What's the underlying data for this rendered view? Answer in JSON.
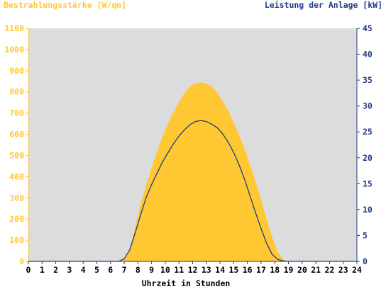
{
  "chart_data": {
    "type": "area",
    "left_axis_label": "Bestrahlungsstärke [W/qm]",
    "right_axis_label": "Leistung der Anlage [kW]",
    "xlabel": "Uhrzeit in Stunden",
    "xlim": [
      0,
      24
    ],
    "x_ticks": [
      "0",
      "1",
      "2",
      "3",
      "4",
      "5",
      "6",
      "7",
      "8",
      "9",
      "10",
      "11",
      "12",
      "13",
      "14",
      "15",
      "16",
      "17",
      "18",
      "19",
      "20",
      "21",
      "22",
      "23",
      "24"
    ],
    "y_left_lim": [
      0,
      1100
    ],
    "y_left_ticks": [
      "0",
      "100",
      "200",
      "300",
      "400",
      "500",
      "600",
      "700",
      "800",
      "900",
      "1000",
      "1100"
    ],
    "y_right_lim": [
      0,
      45
    ],
    "y_right_ticks": [
      "0",
      "5",
      "10",
      "15",
      "20",
      "25",
      "30",
      "35",
      "40",
      "45"
    ],
    "grid": false,
    "series": [
      {
        "name": "Bestrahlungsstärke [W/qm]",
        "axis": "left",
        "style": "area",
        "color": "#ffc732",
        "x": [
          0,
          6.6,
          7.0,
          7.4,
          7.8,
          8.2,
          8.6,
          9.0,
          9.4,
          9.8,
          10.2,
          10.6,
          11.0,
          11.4,
          11.8,
          12.2,
          12.6,
          13.0,
          13.4,
          13.8,
          14.2,
          14.6,
          15.0,
          15.4,
          15.8,
          16.2,
          16.6,
          17.0,
          17.4,
          17.8,
          18.2,
          18.6,
          19.0,
          24
        ],
        "values": [
          0,
          0,
          15,
          60,
          160,
          270,
          360,
          440,
          520,
          590,
          650,
          705,
          750,
          795,
          825,
          840,
          845,
          840,
          825,
          795,
          755,
          710,
          655,
          595,
          530,
          455,
          375,
          290,
          200,
          115,
          45,
          10,
          0,
          0
        ]
      },
      {
        "name": "Leistung der Anlage [kW]",
        "axis": "right",
        "style": "line",
        "color": "#1f3c82",
        "x": [
          0,
          6.6,
          7.0,
          7.4,
          7.8,
          8.2,
          8.6,
          9.0,
          9.4,
          9.8,
          10.2,
          10.6,
          11.0,
          11.4,
          11.8,
          12.2,
          12.6,
          13.0,
          13.4,
          13.8,
          14.2,
          14.6,
          15.0,
          15.4,
          15.8,
          16.2,
          16.6,
          17.0,
          17.4,
          17.8,
          18.2,
          18.6,
          19.0,
          24
        ],
        "values": [
          0,
          0,
          0.5,
          2.2,
          5.5,
          9.0,
          12.3,
          14.8,
          17.0,
          19.2,
          21.0,
          22.7,
          24.2,
          25.4,
          26.4,
          27.0,
          27.2,
          27.0,
          26.5,
          25.8,
          24.6,
          23.0,
          21.0,
          18.6,
          15.8,
          12.6,
          9.4,
          6.3,
          3.5,
          1.4,
          0.4,
          0.1,
          0,
          0
        ]
      }
    ],
    "colors": {
      "plot_background": "#dcdcdc",
      "left_axis": "#ffc732",
      "right_axis": "#1f3c82",
      "x_axis": "#000000"
    }
  }
}
